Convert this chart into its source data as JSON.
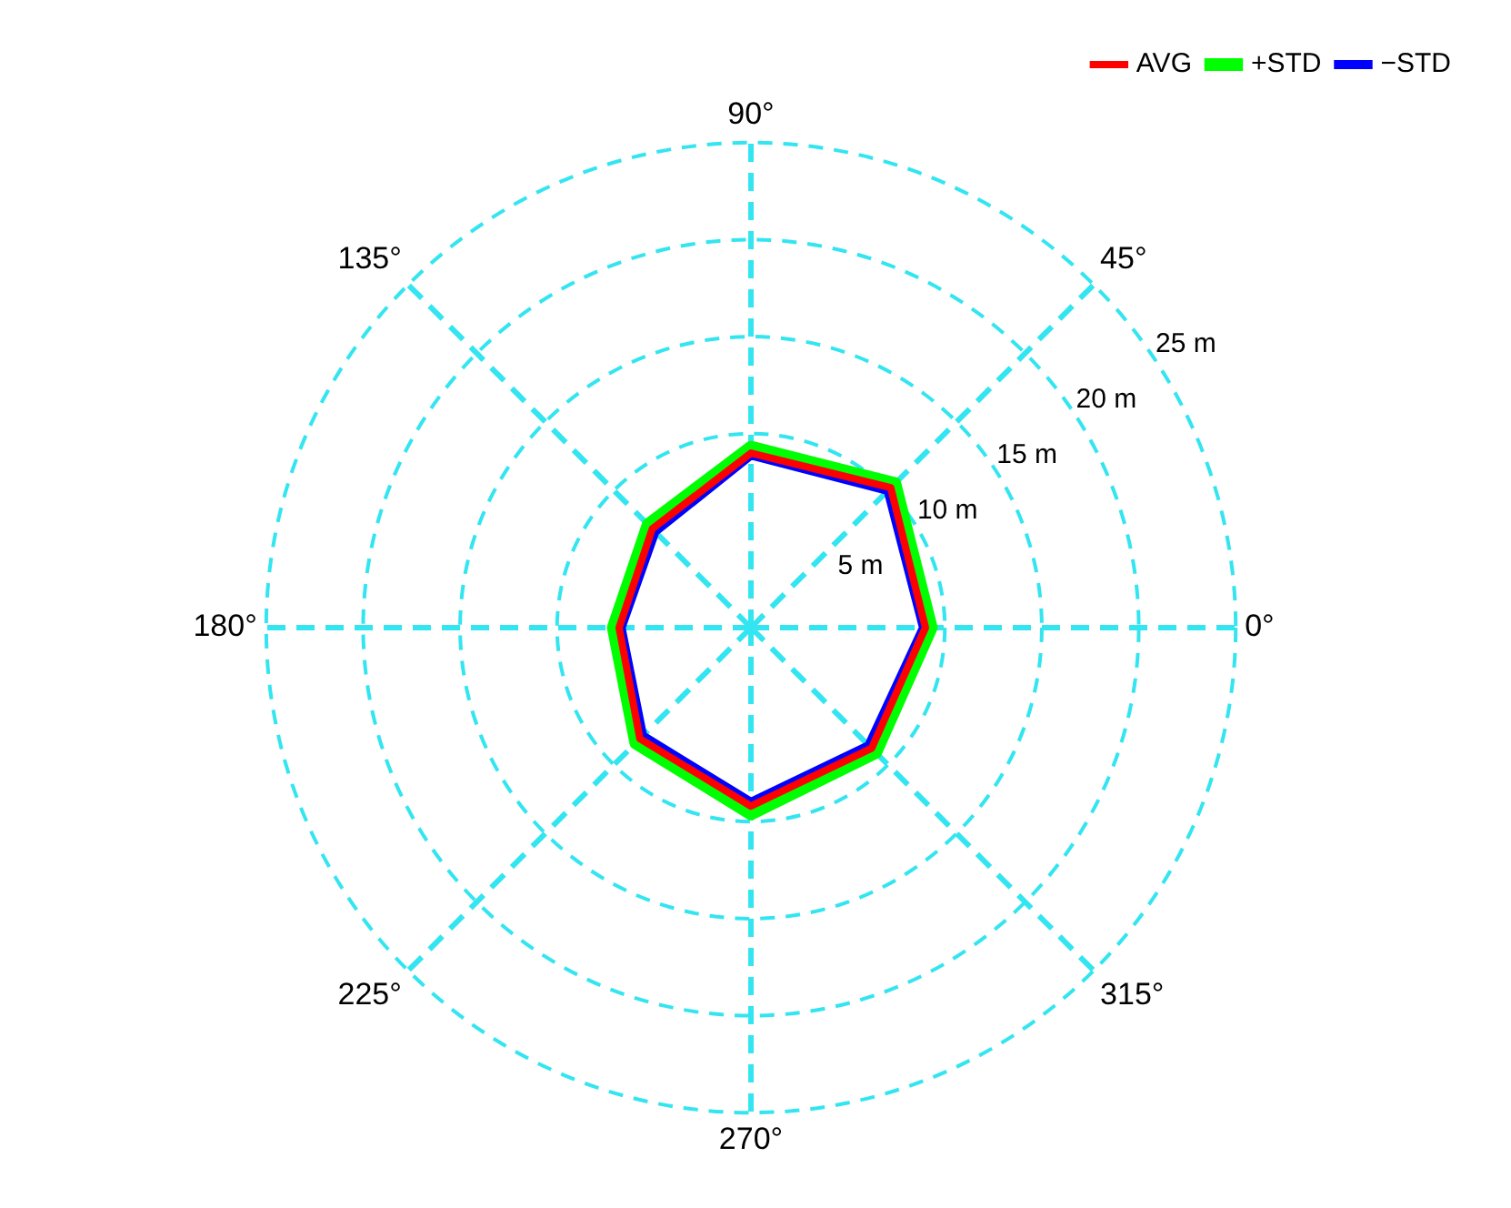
{
  "chart_data": {
    "type": "radar",
    "categories": [
      "90°",
      "45°",
      "0°",
      "315°",
      "270°",
      "225°",
      "180°",
      "135°"
    ],
    "series": [
      {
        "name": "AVG",
        "color": "#ff0000",
        "values": [
          9.0,
          10.2,
          9.0,
          8.8,
          9.2,
          8.1,
          6.8,
          7.2
        ]
      },
      {
        "name": "+STD",
        "color": "#00ff00",
        "values": [
          9.3,
          10.5,
          9.3,
          9.1,
          9.6,
          8.4,
          7.1,
          7.5
        ]
      },
      {
        "name": "−STD",
        "color": "#0000ff",
        "values": [
          8.9,
          10.0,
          8.9,
          8.6,
          9.0,
          7.9,
          6.7,
          7.0
        ]
      }
    ],
    "ylim": [
      0,
      25
    ],
    "yticks": [
      {
        "value": 5,
        "label": "5 m"
      },
      {
        "value": 10,
        "label": "10 m"
      },
      {
        "value": 15,
        "label": "15 m"
      },
      {
        "value": 20,
        "label": "20 m"
      },
      {
        "value": 25,
        "label": "25 m"
      }
    ],
    "grid": true,
    "legend": "top right",
    "marker": "none",
    "line_style": "solid"
  }
}
